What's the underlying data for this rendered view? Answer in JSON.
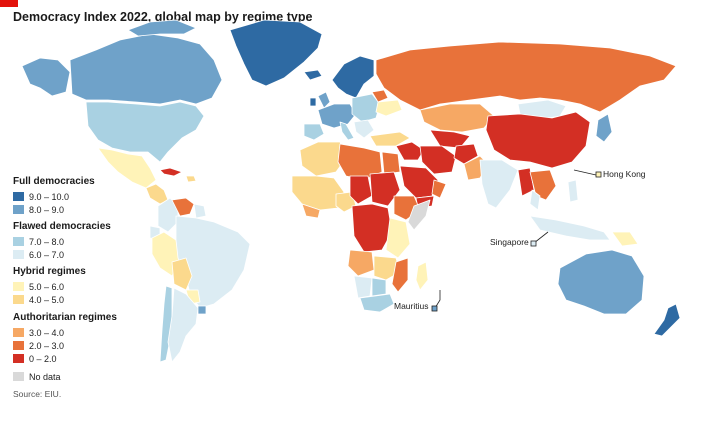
{
  "title": "Democracy Index 2022, global map by regime type",
  "source": "Source: EIU.",
  "colors": {
    "brand": "#e3120b",
    "full_high": "#2e6aa3",
    "full_low": "#6fa2c9",
    "flawed_high": "#a9d1e2",
    "flawed_low": "#dcecf3",
    "hybrid_high": "#fff3b8",
    "hybrid_low": "#fbd98d",
    "auth_high": "#f6a864",
    "auth_mid": "#e8723a",
    "auth_low": "#d32f24",
    "no_data": "#d9d9d9"
  },
  "legend": {
    "full": {
      "heading": "Full democracies",
      "items": [
        {
          "label": "9.0 – 10.0",
          "color": "#2e6aa3"
        },
        {
          "label": "8.0 – 9.0",
          "color": "#6fa2c9"
        }
      ]
    },
    "flawed": {
      "heading": "Flawed democracies",
      "items": [
        {
          "label": "7.0 – 8.0",
          "color": "#a9d1e2"
        },
        {
          "label": "6.0 – 7.0",
          "color": "#dcecf3"
        }
      ]
    },
    "hybrid": {
      "heading": "Hybrid regimes",
      "items": [
        {
          "label": "5.0 – 6.0",
          "color": "#fff3b8"
        },
        {
          "label": "4.0 – 5.0",
          "color": "#fbd98d"
        }
      ]
    },
    "authoritarian": {
      "heading": "Authoritarian regimes",
      "items": [
        {
          "label": "3.0 – 4.0",
          "color": "#f6a864"
        },
        {
          "label": "2.0 – 3.0",
          "color": "#e8723a"
        },
        {
          "label": "0 – 2.0",
          "color": "#d32f24"
        }
      ]
    },
    "no_data": {
      "label": "No data",
      "color": "#d9d9d9"
    }
  },
  "callouts": {
    "hong_kong": "Hong Kong",
    "singapore": "Singapore",
    "mauritius": "Mauritius"
  }
}
